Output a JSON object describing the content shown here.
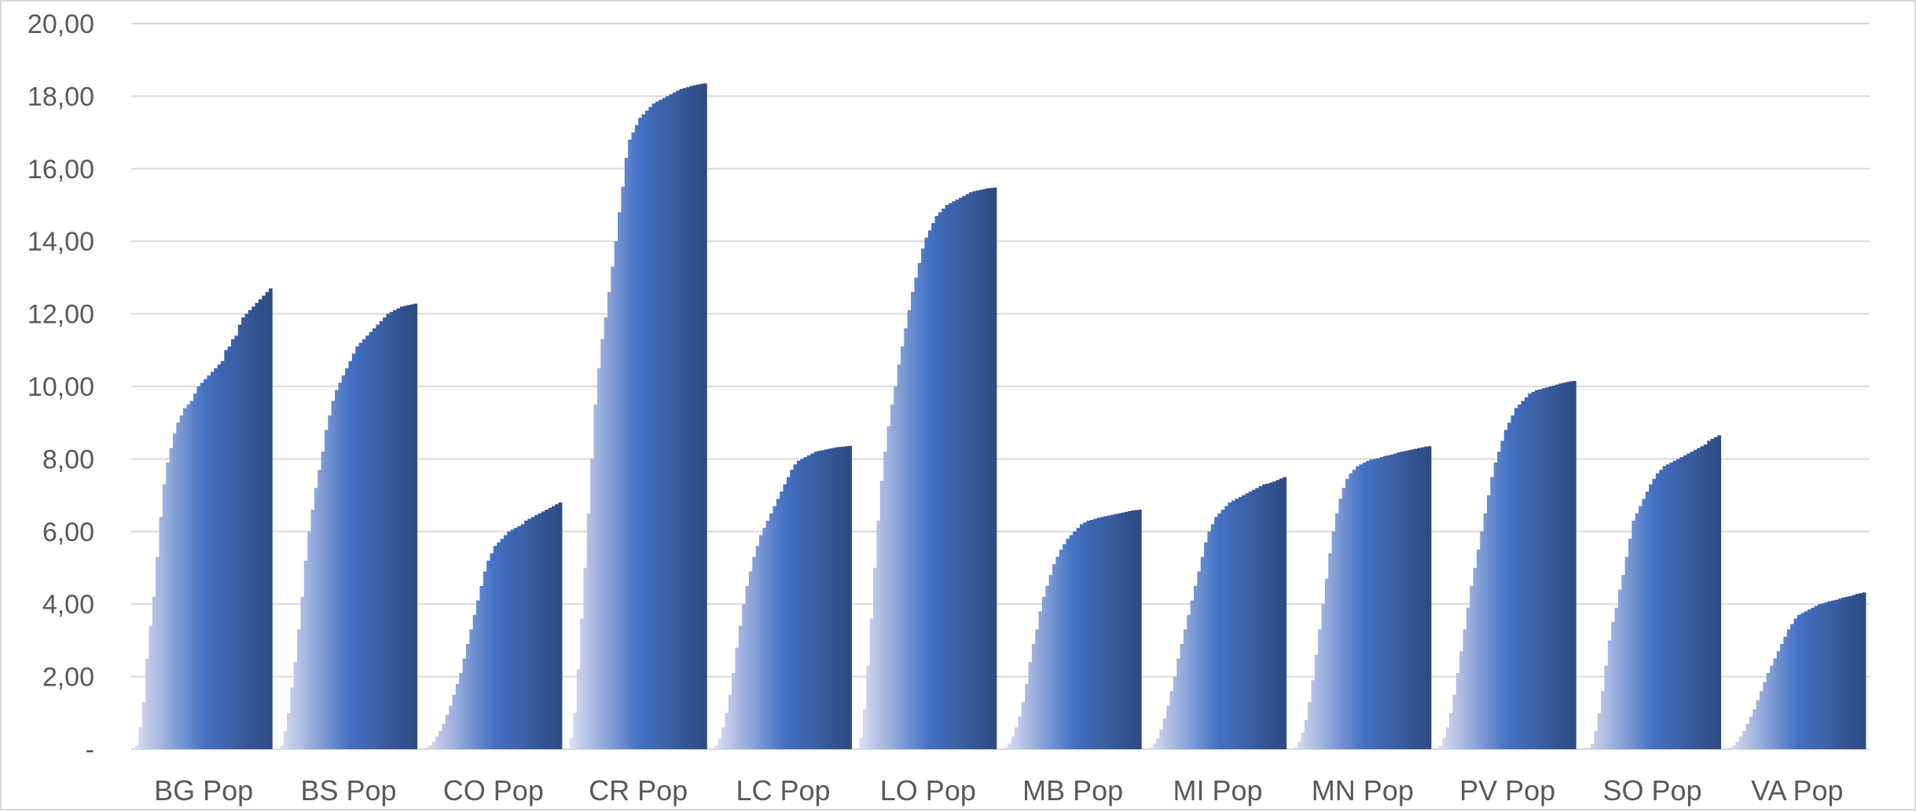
{
  "chart_data": {
    "type": "bar",
    "title": "",
    "xlabel": "",
    "ylabel": "",
    "ylim": [
      0,
      20
    ],
    "grid": true,
    "legend": "none",
    "y_ticks": [
      "-",
      "2,00",
      "4,00",
      "6,00",
      "8,00",
      "10,00",
      "12,00",
      "14,00",
      "16,00",
      "18,00",
      "20,00"
    ],
    "categories": [
      "BG Pop",
      "BS Pop",
      "CO Pop",
      "CR Pop",
      "LC Pop",
      "LO Pop",
      "MB Pop",
      "MI Pop",
      "MN Pop",
      "PV Pop",
      "SO Pop",
      "VA Pop"
    ],
    "color_light": "#d9dcef",
    "color_mid": "#4472c4",
    "color_dark": "#2f4b82",
    "bars_per_group": 40,
    "groups": [
      {
        "name": "BG Pop",
        "values": [
          0.1,
          0.6,
          1.3,
          2.5,
          3.4,
          4.2,
          5.3,
          6.4,
          7.3,
          7.9,
          8.3,
          8.7,
          9.0,
          9.2,
          9.4,
          9.5,
          9.6,
          9.8,
          10.0,
          10.1,
          10.2,
          10.3,
          10.4,
          10.5,
          10.6,
          10.7,
          11.0,
          11.1,
          11.3,
          11.4,
          11.7,
          11.9,
          12.0,
          12.1,
          12.2,
          12.3,
          12.4,
          12.5,
          12.6,
          12.7
        ]
      },
      {
        "name": "BS Pop",
        "values": [
          0.1,
          0.5,
          1.0,
          1.7,
          2.4,
          3.3,
          4.2,
          5.2,
          6.0,
          6.6,
          7.2,
          7.7,
          8.2,
          8.8,
          9.2,
          9.6,
          9.9,
          10.1,
          10.3,
          10.5,
          10.7,
          10.9,
          11.1,
          11.2,
          11.3,
          11.4,
          11.5,
          11.6,
          11.7,
          11.8,
          11.9,
          12.0,
          12.05,
          12.1,
          12.15,
          12.2,
          12.22,
          12.24,
          12.26,
          12.28
        ]
      },
      {
        "name": "CO Pop",
        "values": [
          0.05,
          0.1,
          0.2,
          0.35,
          0.5,
          0.7,
          0.95,
          1.2,
          1.5,
          1.8,
          2.1,
          2.5,
          2.9,
          3.3,
          3.7,
          4.1,
          4.5,
          4.9,
          5.2,
          5.4,
          5.6,
          5.7,
          5.8,
          5.9,
          6.0,
          6.05,
          6.1,
          6.15,
          6.2,
          6.3,
          6.35,
          6.4,
          6.45,
          6.5,
          6.55,
          6.6,
          6.65,
          6.7,
          6.75,
          6.8
        ]
      },
      {
        "name": "CR Pop",
        "values": [
          0.3,
          1.0,
          2.2,
          3.6,
          5.0,
          6.5,
          8.0,
          9.5,
          10.5,
          11.3,
          11.9,
          12.6,
          13.3,
          14.0,
          14.8,
          15.5,
          16.3,
          16.8,
          17.0,
          17.2,
          17.4,
          17.5,
          17.6,
          17.7,
          17.8,
          17.85,
          17.9,
          17.95,
          18.0,
          18.05,
          18.1,
          18.15,
          18.2,
          18.22,
          18.25,
          18.28,
          18.3,
          18.32,
          18.34,
          18.35
        ]
      },
      {
        "name": "LC Pop",
        "values": [
          0.1,
          0.3,
          0.6,
          1.0,
          1.5,
          2.1,
          2.8,
          3.4,
          4.0,
          4.5,
          4.9,
          5.3,
          5.6,
          5.9,
          6.1,
          6.3,
          6.5,
          6.7,
          6.9,
          7.1,
          7.3,
          7.5,
          7.7,
          7.85,
          7.95,
          8.0,
          8.05,
          8.1,
          8.15,
          8.2,
          8.22,
          8.24,
          8.26,
          8.28,
          8.3,
          8.32,
          8.33,
          8.34,
          8.35,
          8.36
        ]
      },
      {
        "name": "LO Pop",
        "values": [
          0.3,
          1.1,
          2.3,
          3.6,
          5.0,
          6.3,
          7.4,
          8.2,
          8.9,
          9.5,
          10.0,
          10.6,
          11.1,
          11.6,
          12.1,
          12.6,
          13.0,
          13.4,
          13.8,
          14.1,
          14.3,
          14.5,
          14.7,
          14.8,
          14.9,
          15.0,
          15.05,
          15.1,
          15.15,
          15.2,
          15.25,
          15.3,
          15.35,
          15.38,
          15.4,
          15.42,
          15.44,
          15.46,
          15.47,
          15.48
        ]
      },
      {
        "name": "MB Pop",
        "values": [
          0.05,
          0.15,
          0.35,
          0.6,
          0.9,
          1.3,
          1.8,
          2.4,
          2.9,
          3.3,
          3.8,
          4.2,
          4.5,
          4.8,
          5.1,
          5.3,
          5.5,
          5.65,
          5.8,
          5.9,
          6.0,
          6.1,
          6.2,
          6.25,
          6.3,
          6.32,
          6.35,
          6.38,
          6.4,
          6.42,
          6.44,
          6.46,
          6.48,
          6.5,
          6.52,
          6.54,
          6.56,
          6.58,
          6.59,
          6.6
        ]
      },
      {
        "name": "MI Pop",
        "values": [
          0.05,
          0.15,
          0.3,
          0.55,
          0.85,
          1.2,
          1.6,
          2.0,
          2.5,
          2.9,
          3.3,
          3.7,
          4.1,
          4.5,
          4.9,
          5.3,
          5.7,
          6.0,
          6.2,
          6.4,
          6.5,
          6.6,
          6.7,
          6.8,
          6.85,
          6.9,
          6.95,
          7.0,
          7.05,
          7.1,
          7.15,
          7.2,
          7.25,
          7.3,
          7.32,
          7.35,
          7.38,
          7.42,
          7.46,
          7.5
        ]
      },
      {
        "name": "MN Pop",
        "values": [
          0.05,
          0.2,
          0.45,
          0.8,
          1.3,
          1.9,
          2.6,
          3.3,
          4.0,
          4.7,
          5.4,
          6.0,
          6.5,
          6.9,
          7.2,
          7.45,
          7.6,
          7.7,
          7.8,
          7.85,
          7.9,
          7.95,
          7.98,
          8.0,
          8.02,
          8.05,
          8.08,
          8.1,
          8.12,
          8.15,
          8.18,
          8.2,
          8.22,
          8.24,
          8.26,
          8.28,
          8.3,
          8.32,
          8.34,
          8.35
        ]
      },
      {
        "name": "PV Pop",
        "values": [
          0.1,
          0.3,
          0.6,
          1.0,
          1.5,
          2.1,
          2.7,
          3.3,
          3.9,
          4.5,
          5.0,
          5.5,
          6.0,
          6.5,
          7.0,
          7.5,
          7.9,
          8.2,
          8.5,
          8.8,
          9.0,
          9.2,
          9.4,
          9.5,
          9.6,
          9.7,
          9.8,
          9.85,
          9.9,
          9.92,
          9.95,
          9.97,
          10.0,
          10.02,
          10.05,
          10.08,
          10.1,
          10.12,
          10.14,
          10.15
        ]
      },
      {
        "name": "SO Pop",
        "values": [
          0.05,
          0.05,
          0.15,
          0.5,
          1.0,
          1.6,
          2.3,
          3.0,
          3.5,
          3.9,
          4.4,
          4.8,
          5.3,
          5.8,
          6.3,
          6.5,
          6.7,
          6.9,
          7.1,
          7.3,
          7.45,
          7.6,
          7.7,
          7.8,
          7.85,
          7.9,
          7.95,
          8.0,
          8.05,
          8.1,
          8.15,
          8.2,
          8.25,
          8.3,
          8.35,
          8.4,
          8.5,
          8.55,
          8.6,
          8.65
        ]
      },
      {
        "name": "VA Pop",
        "values": [
          0.05,
          0.1,
          0.2,
          0.35,
          0.5,
          0.7,
          0.9,
          1.1,
          1.35,
          1.6,
          1.85,
          2.1,
          2.3,
          2.5,
          2.7,
          2.9,
          3.1,
          3.3,
          3.45,
          3.6,
          3.7,
          3.75,
          3.8,
          3.85,
          3.9,
          3.95,
          4.0,
          4.02,
          4.05,
          4.08,
          4.1,
          4.12,
          4.15,
          4.18,
          4.2,
          4.22,
          4.25,
          4.28,
          4.3,
          4.32
        ]
      }
    ]
  }
}
